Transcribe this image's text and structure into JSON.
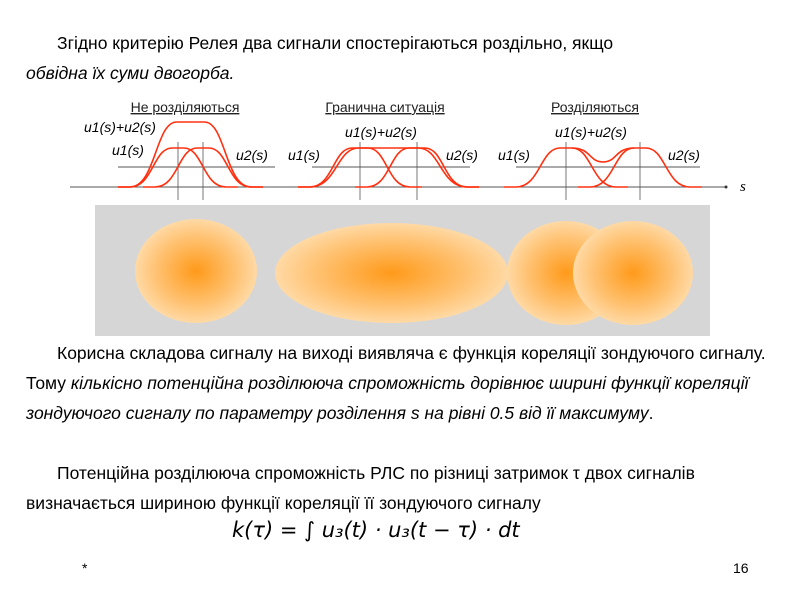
{
  "para1": {
    "line1": "Згідно критерію Релея два сигнали спостерігаються роздільно, якщо",
    "line2": "обвідна їх суми двогорба."
  },
  "diagram": {
    "panels": [
      {
        "title": "Не розділяються",
        "sum": "u1(s)+u2(s)",
        "u1": "u1(s)",
        "u2": "u2(s)"
      },
      {
        "title": "Гранична ситуація",
        "sum": "u1(s)+u2(s)",
        "u1": "u1(s)",
        "u2": "u2(s)"
      },
      {
        "title": "Розділяються",
        "sum": "u1(s)+u2(s)",
        "u1": "u1(s)",
        "u2": "u2(s)"
      }
    ],
    "axis_label": "s",
    "curve_color": "#ff3010",
    "blob_color": "#ff9a1a"
  },
  "para2": {
    "a": "Корисна складова сигналу на виході виявляча є функція кореляції зондуючого сигналу. Тому ",
    "b": "кількісно потенційна розділююча спроможність дорівнює ширині функції кореляції зондуючого сигналу по параметру розділення s на рівні 0.5 від її максимуму",
    "c": "."
  },
  "para3": "Потенційна розділююча спроможність РЛС по різниці затримок τ двох сигналів визначається шириною функції кореляції її зондуючого сигналу",
  "formula": "k(τ) = ∫ u₃(t) · u₃(t − τ) · dt",
  "footer": {
    "left": "*",
    "page": "16"
  }
}
